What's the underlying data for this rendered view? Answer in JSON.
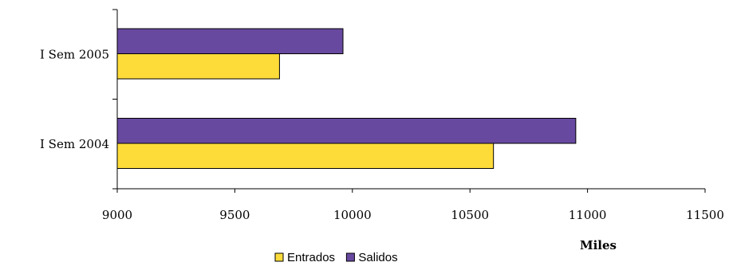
{
  "chart_data": {
    "type": "bar",
    "orientation": "horizontal",
    "categories": [
      "I Sem 2005",
      "I Sem 2004"
    ],
    "series": [
      {
        "name": "Salidos",
        "values": [
          9960,
          10950
        ],
        "color": "#6849A0"
      },
      {
        "name": "Entrados",
        "values": [
          9690,
          10600
        ],
        "color": "#FDDC3A"
      }
    ],
    "xlim": [
      9000,
      11500
    ],
    "xticks": [
      "9000",
      "9500",
      "10000",
      "10500",
      "11000",
      "11500"
    ],
    "xlabel": "Miles",
    "legend_position": "bottom",
    "legend_order": [
      "Entrados",
      "Salidos"
    ],
    "grid": false
  }
}
